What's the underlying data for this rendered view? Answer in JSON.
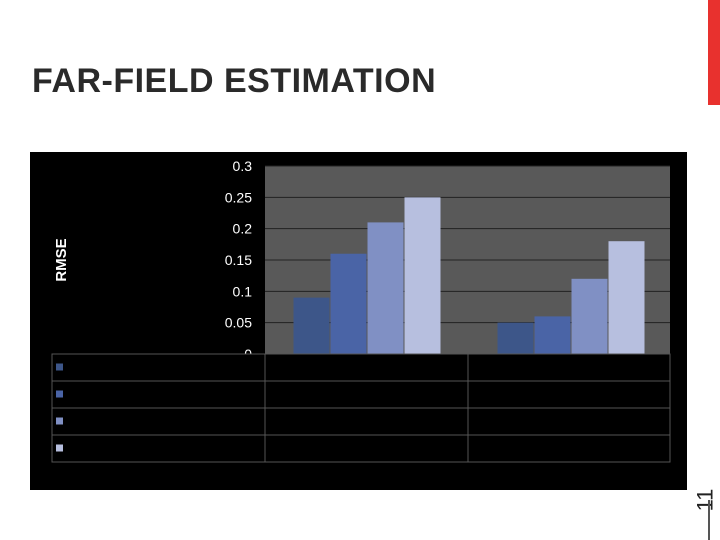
{
  "slide": {
    "title": "FAR-FIELD ESTIMATION",
    "slide_number": "11",
    "accent_color": "#e8312e"
  },
  "chart_data": {
    "type": "bar",
    "ylabel": "RMSE",
    "ylim": [
      0,
      0.3
    ],
    "yticks": [
      "0.3",
      "0.25",
      "0.2",
      "0.15",
      "0.1",
      "0.05",
      "0"
    ],
    "categories": [
      "",
      ""
    ],
    "series": [
      {
        "color": "#3d5689",
        "values": [
          0.09,
          0.05
        ]
      },
      {
        "color": "#4a64a6",
        "values": [
          0.16,
          0.06
        ]
      },
      {
        "color": "#8090c4",
        "values": [
          0.21,
          0.12
        ]
      },
      {
        "color": "#b7bfdf",
        "values": [
          0.25,
          0.18
        ]
      }
    ],
    "plot_background": "#595959",
    "panel_background": "#000000",
    "grid": true,
    "legend": "table-below"
  }
}
